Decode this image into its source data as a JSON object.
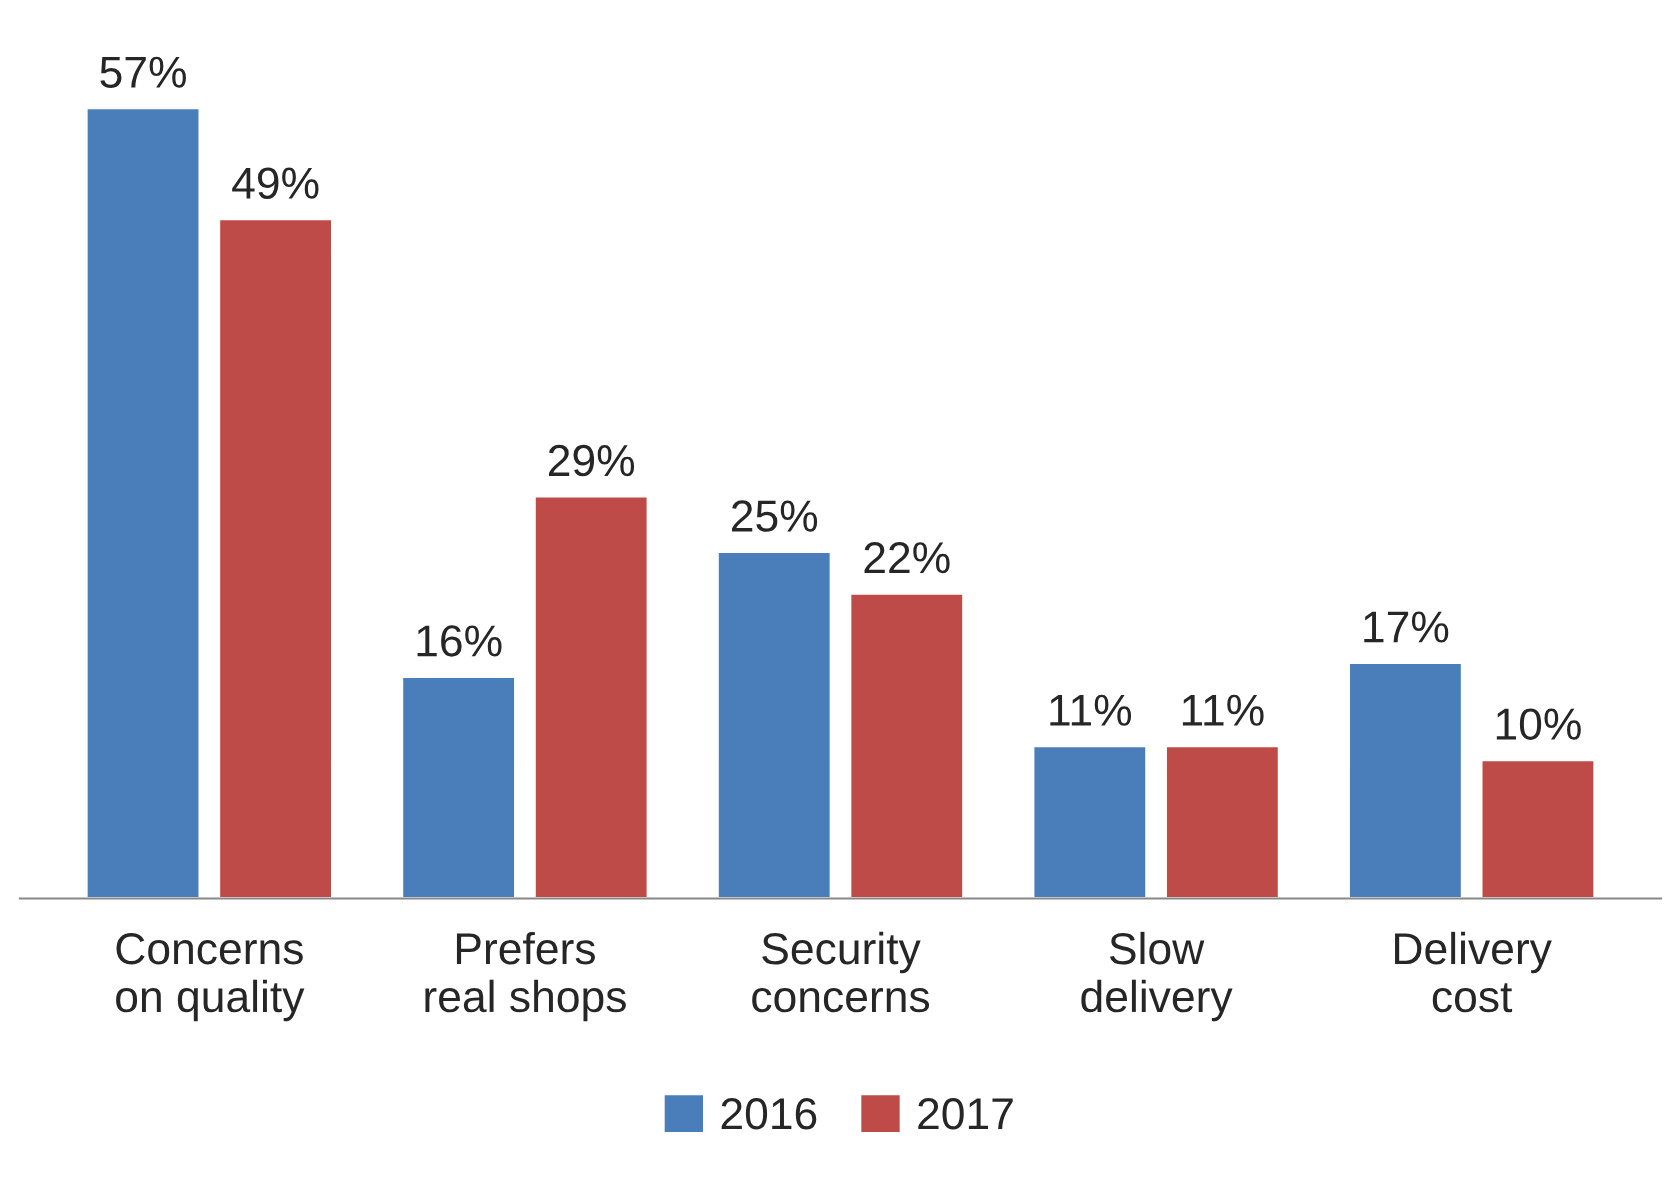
{
  "chart_data": {
    "type": "bar",
    "categories": [
      "Concerns\non quality",
      "Prefers\nreal shops",
      "Security\nconcerns",
      "Slow\ndelivery",
      "Delivery\ncost"
    ],
    "series": [
      {
        "name": "2016",
        "color": "#4a7ebb",
        "values": [
          57,
          16,
          25,
          11,
          17
        ],
        "value_labels": [
          "57%",
          "16%",
          "25%",
          "11%",
          "17%"
        ]
      },
      {
        "name": "2017",
        "color": "#be4b48",
        "values": [
          49,
          29,
          22,
          11,
          10
        ],
        "value_labels": [
          "49%",
          "29%",
          "22%",
          "11%",
          "10%"
        ]
      }
    ],
    "legend": "bottom",
    "grid": false
  }
}
